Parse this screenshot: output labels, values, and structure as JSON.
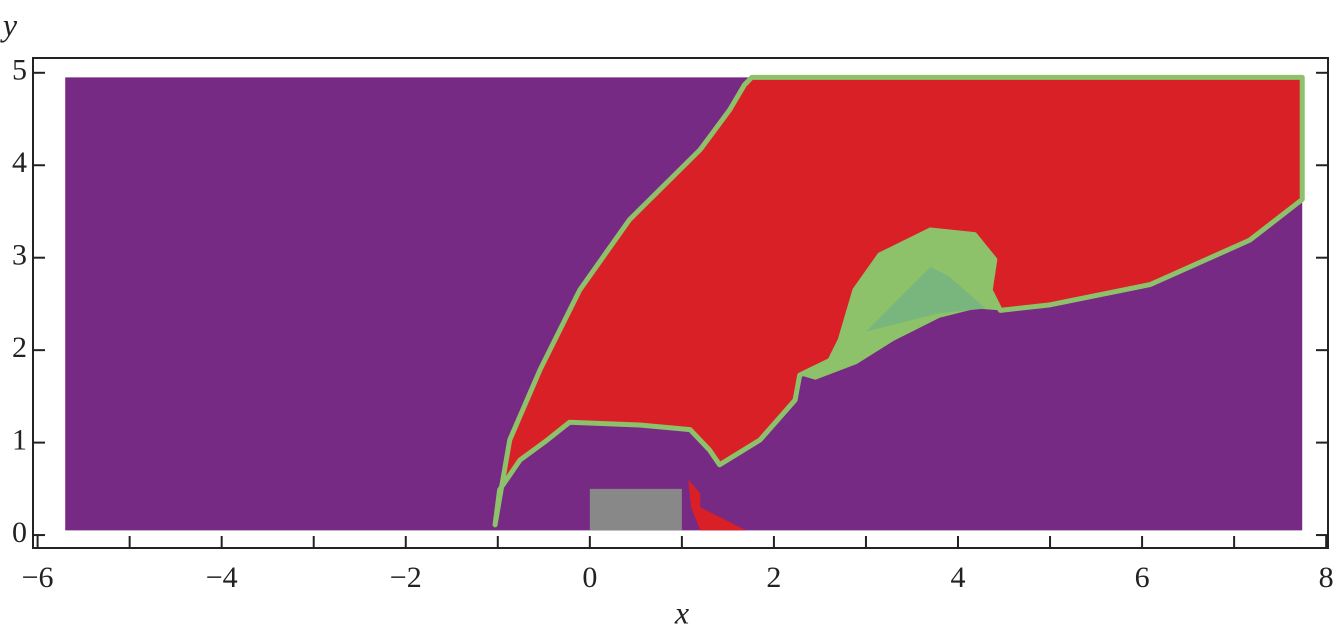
{
  "chart_data": {
    "type": "area",
    "x_label": "x",
    "y_label": "y",
    "xlim": [
      -6.05,
      8.02
    ],
    "ylim": [
      -0.14,
      5.16
    ],
    "xticks": [
      {
        "value": -6,
        "label": "−6"
      },
      {
        "value": -4,
        "label": "−4"
      },
      {
        "value": -2,
        "label": "−2"
      },
      0,
      2,
      4,
      6,
      8
    ],
    "xminor": [
      -5,
      -3,
      -1,
      1,
      3,
      5,
      7
    ],
    "yticks": [
      0,
      1,
      2,
      3,
      4,
      5
    ],
    "series": [
      {
        "color": "#762a83",
        "x": [
          -5.7,
          7.74,
          7.74,
          -5.7
        ],
        "y": [
          0.05,
          0.05,
          4.95,
          4.95
        ]
      },
      {
        "color": "#d92027",
        "edge_color": "#8dc26a",
        "x": [
          1.76,
          7.74,
          7.74,
          7.17,
          6.09,
          5.0,
          4.46,
          4.35,
          4.4,
          4.18,
          3.7,
          3.15,
          2.88,
          2.72,
          2.61,
          2.28,
          2.23,
          1.85,
          1.41,
          1.3,
          1.09,
          0.54,
          -0.22,
          -0.46,
          -0.76,
          -0.98,
          -1.03,
          -0.87,
          -0.54,
          -0.11,
          0.43,
          1.2,
          1.52,
          1.68
        ],
        "y": [
          4.95,
          4.95,
          3.63,
          3.19,
          2.71,
          2.49,
          2.43,
          2.65,
          2.98,
          3.25,
          3.3,
          3.03,
          2.65,
          2.11,
          1.89,
          1.73,
          1.46,
          1.03,
          0.76,
          0.92,
          1.14,
          1.19,
          1.22,
          1.03,
          0.81,
          0.49,
          0.11,
          1.03,
          1.79,
          2.65,
          3.41,
          4.17,
          4.6,
          4.87
        ]
      },
      {
        "color": "#8dc26a",
        "x": [
          4.46,
          4.35,
          4.4,
          4.18,
          3.7,
          3.15,
          2.88,
          2.72,
          2.61,
          2.28,
          2.45,
          2.9,
          3.3,
          3.8,
          4.2
        ],
        "y": [
          2.43,
          2.65,
          2.98,
          3.25,
          3.3,
          3.03,
          2.65,
          2.11,
          1.89,
          1.73,
          1.68,
          1.85,
          2.1,
          2.35,
          2.45
        ]
      },
      {
        "color": "#78b67e",
        "x": [
          3.0,
          3.4,
          3.7,
          3.9,
          4.3,
          3.8
        ],
        "y": [
          2.2,
          2.6,
          2.9,
          2.8,
          2.45,
          2.4
        ]
      },
      {
        "color": "#d92027",
        "x": [
          1.07,
          1.2,
          1.2,
          1.7,
          1.2,
          1.1
        ],
        "y": [
          0.6,
          0.45,
          0.3,
          0.05,
          0.05,
          0.3
        ]
      },
      {
        "color": "#888888",
        "x": [
          0,
          1,
          1,
          0
        ],
        "y": [
          0.05,
          0.05,
          0.5,
          0.5
        ]
      }
    ]
  }
}
